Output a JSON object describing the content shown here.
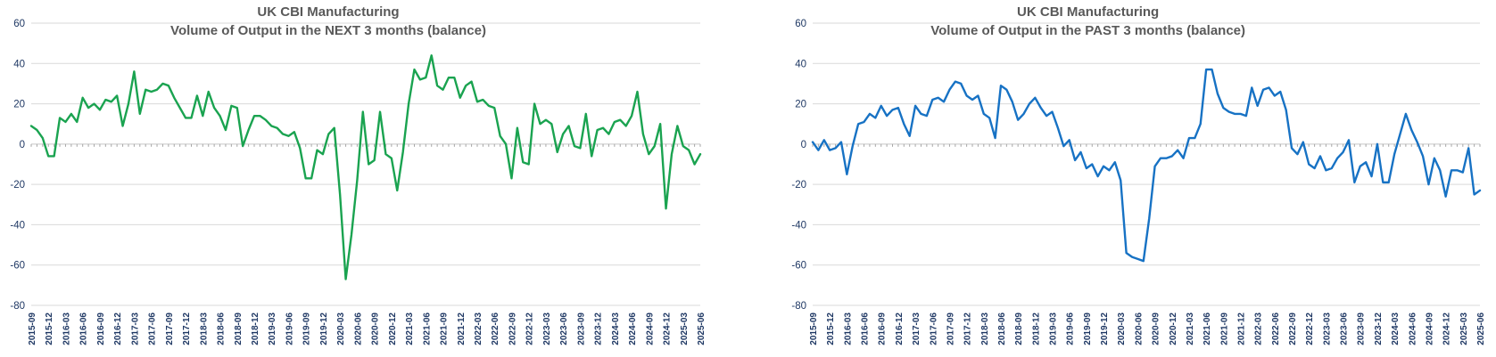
{
  "charts": [
    {
      "title_line1": "UK CBI Manufacturing",
      "title_line2": "Volume of Output in the NEXT 3 months (balance)"
    },
    {
      "title_line1": "UK CBI Manufacturing",
      "title_line2": "Volume of Output in the PAST 3 months (balance)"
    }
  ],
  "colors": {
    "next_line": "#1AA350",
    "past_line": "#1772C4",
    "title_text": "#595959",
    "axis_label_text": "#1F3864",
    "gridline": "#D9D9D9",
    "axis_line": "#C6C6C6",
    "tick_mark": "#A6A6A6",
    "background": "#FFFFFF"
  },
  "chart_data": [
    {
      "type": "line",
      "title": "UK CBI Manufacturing",
      "subtitle": "Volume of Output in the NEXT 3 months (balance)",
      "line_color": "#1AA350",
      "ylim": [
        -80,
        60
      ],
      "yticks": [
        60,
        40,
        20,
        0,
        -20,
        -40,
        -60,
        -80
      ],
      "grid": true,
      "legend": false,
      "x_tick_labels": [
        "2015-09",
        "2015-12",
        "2016-03",
        "2016-06",
        "2016-09",
        "2016-12",
        "2017-03",
        "2017-06",
        "2017-09",
        "2017-12",
        "2018-03",
        "2018-06",
        "2018-09",
        "2018-12",
        "2019-03",
        "2019-06",
        "2019-09",
        "2019-12",
        "2020-03",
        "2020-06",
        "2020-09",
        "2020-12",
        "2021-03",
        "2021-06",
        "2021-09",
        "2021-12",
        "2022-03",
        "2022-06",
        "2022-09",
        "2022-12",
        "2023-03",
        "2023-06",
        "2023-09",
        "2023-12",
        "2024-03",
        "2024-06",
        "2024-09",
        "2024-12",
        "2025-03",
        "2025-06"
      ],
      "x": [
        "2015-09",
        "2015-10",
        "2015-11",
        "2015-12",
        "2016-01",
        "2016-02",
        "2016-03",
        "2016-04",
        "2016-05",
        "2016-06",
        "2016-07",
        "2016-08",
        "2016-09",
        "2016-10",
        "2016-11",
        "2016-12",
        "2017-01",
        "2017-02",
        "2017-03",
        "2017-04",
        "2017-05",
        "2017-06",
        "2017-07",
        "2017-08",
        "2017-09",
        "2017-10",
        "2017-11",
        "2017-12",
        "2018-01",
        "2018-02",
        "2018-03",
        "2018-04",
        "2018-05",
        "2018-06",
        "2018-07",
        "2018-08",
        "2018-09",
        "2018-10",
        "2018-11",
        "2018-12",
        "2019-01",
        "2019-02",
        "2019-03",
        "2019-04",
        "2019-05",
        "2019-06",
        "2019-07",
        "2019-08",
        "2019-09",
        "2019-10",
        "2019-11",
        "2019-12",
        "2020-01",
        "2020-02",
        "2020-03",
        "2020-04",
        "2020-05",
        "2020-06",
        "2020-07",
        "2020-08",
        "2020-09",
        "2020-10",
        "2020-11",
        "2020-12",
        "2021-01",
        "2021-02",
        "2021-03",
        "2021-04",
        "2021-05",
        "2021-06",
        "2021-07",
        "2021-08",
        "2021-09",
        "2021-10",
        "2021-11",
        "2021-12",
        "2022-01",
        "2022-02",
        "2022-03",
        "2022-04",
        "2022-05",
        "2022-06",
        "2022-07",
        "2022-08",
        "2022-09",
        "2022-10",
        "2022-11",
        "2022-12",
        "2023-01",
        "2023-02",
        "2023-03",
        "2023-04",
        "2023-05",
        "2023-06",
        "2023-07",
        "2023-08",
        "2023-09",
        "2023-10",
        "2023-11",
        "2023-12",
        "2024-01",
        "2024-02",
        "2024-03",
        "2024-04",
        "2024-05",
        "2024-06",
        "2024-07",
        "2024-08",
        "2024-09",
        "2024-10",
        "2024-11",
        "2024-12",
        "2025-01",
        "2025-02",
        "2025-03",
        "2025-04",
        "2025-05",
        "2025-06"
      ],
      "values": [
        9,
        7,
        3,
        -6,
        -6,
        13,
        11,
        15,
        11,
        23,
        18,
        20,
        17,
        22,
        21,
        24,
        9,
        20,
        36,
        15,
        27,
        26,
        27,
        30,
        29,
        23,
        18,
        13,
        13,
        24,
        14,
        26,
        18,
        14,
        7,
        19,
        18,
        -1,
        7,
        14,
        14,
        12,
        9,
        8,
        5,
        4,
        6,
        -2,
        -17,
        -17,
        -3,
        -5,
        5,
        8,
        -25,
        -67,
        -45,
        -18,
        16,
        -10,
        -8,
        16,
        -5,
        -7,
        -23,
        -4,
        20,
        37,
        32,
        33,
        44,
        29,
        27,
        33,
        33,
        23,
        29,
        31,
        21,
        22,
        19,
        18,
        4,
        0,
        -17,
        8,
        -9,
        -10,
        20,
        10,
        12,
        10,
        -4,
        5,
        9,
        -1,
        -2,
        15,
        -6,
        7,
        8,
        5,
        11,
        12,
        9,
        14,
        26,
        5,
        -5,
        -1,
        10,
        -32,
        -5,
        9,
        -1,
        -3,
        -10,
        -5
      ]
    },
    {
      "type": "line",
      "title": "UK CBI Manufacturing",
      "subtitle": "Volume of Output in the PAST 3 months (balance)",
      "line_color": "#1772C4",
      "ylim": [
        -80,
        60
      ],
      "yticks": [
        60,
        40,
        20,
        0,
        -20,
        -40,
        -60,
        -80
      ],
      "grid": true,
      "legend": false,
      "x_tick_labels": [
        "2015-09",
        "2015-12",
        "2016-03",
        "2016-06",
        "2016-09",
        "2016-12",
        "2017-03",
        "2017-06",
        "2017-09",
        "2017-12",
        "2018-03",
        "2018-06",
        "2018-09",
        "2018-12",
        "2019-03",
        "2019-06",
        "2019-09",
        "2019-12",
        "2020-03",
        "2020-06",
        "2020-09",
        "2020-12",
        "2021-03",
        "2021-06",
        "2021-09",
        "2021-12",
        "2022-03",
        "2022-06",
        "2022-09",
        "2022-12",
        "2023-03",
        "2023-06",
        "2023-09",
        "2023-12",
        "2024-03",
        "2024-06",
        "2024-09",
        "2024-12",
        "2025-03",
        "2025-06"
      ],
      "x": [
        "2015-09",
        "2015-10",
        "2015-11",
        "2015-12",
        "2016-01",
        "2016-02",
        "2016-03",
        "2016-04",
        "2016-05",
        "2016-06",
        "2016-07",
        "2016-08",
        "2016-09",
        "2016-10",
        "2016-11",
        "2016-12",
        "2017-01",
        "2017-02",
        "2017-03",
        "2017-04",
        "2017-05",
        "2017-06",
        "2017-07",
        "2017-08",
        "2017-09",
        "2017-10",
        "2017-11",
        "2017-12",
        "2018-01",
        "2018-02",
        "2018-03",
        "2018-04",
        "2018-05",
        "2018-06",
        "2018-07",
        "2018-08",
        "2018-09",
        "2018-10",
        "2018-11",
        "2018-12",
        "2019-01",
        "2019-02",
        "2019-03",
        "2019-04",
        "2019-05",
        "2019-06",
        "2019-07",
        "2019-08",
        "2019-09",
        "2019-10",
        "2019-11",
        "2019-12",
        "2020-01",
        "2020-02",
        "2020-03",
        "2020-04",
        "2020-05",
        "2020-06",
        "2020-07",
        "2020-08",
        "2020-09",
        "2020-10",
        "2020-11",
        "2020-12",
        "2021-01",
        "2021-02",
        "2021-03",
        "2021-04",
        "2021-05",
        "2021-06",
        "2021-07",
        "2021-08",
        "2021-09",
        "2021-10",
        "2021-11",
        "2021-12",
        "2022-01",
        "2022-02",
        "2022-03",
        "2022-04",
        "2022-05",
        "2022-06",
        "2022-07",
        "2022-08",
        "2022-09",
        "2022-10",
        "2022-11",
        "2022-12",
        "2023-01",
        "2023-02",
        "2023-03",
        "2023-04",
        "2023-05",
        "2023-06",
        "2023-07",
        "2023-08",
        "2023-09",
        "2023-10",
        "2023-11",
        "2023-12",
        "2024-01",
        "2024-02",
        "2024-03",
        "2024-04",
        "2024-05",
        "2024-06",
        "2024-07",
        "2024-08",
        "2024-09",
        "2024-10",
        "2024-11",
        "2024-12",
        "2025-01",
        "2025-02",
        "2025-03",
        "2025-04",
        "2025-05",
        "2025-06"
      ],
      "values": [
        1,
        -3,
        2,
        -3,
        -2,
        1,
        -15,
        -1,
        10,
        11,
        15,
        13,
        19,
        14,
        17,
        18,
        10,
        4,
        19,
        15,
        14,
        22,
        23,
        21,
        27,
        31,
        30,
        24,
        22,
        24,
        15,
        13,
        3,
        29,
        27,
        21,
        12,
        15,
        20,
        23,
        18,
        14,
        16,
        8,
        -1,
        2,
        -8,
        -4,
        -12,
        -10,
        -16,
        -11,
        -13,
        -9,
        -18,
        -54,
        -56,
        -57,
        -58,
        -37,
        -11,
        -7,
        -7,
        -6,
        -3,
        -7,
        3,
        3,
        10,
        37,
        37,
        25,
        18,
        16,
        15,
        15,
        14,
        28,
        19,
        27,
        28,
        24,
        26,
        17,
        -2,
        -5,
        1,
        -10,
        -12,
        -6,
        -13,
        -12,
        -7,
        -4,
        2,
        -19,
        -11,
        -9,
        -16,
        0,
        -19,
        -19,
        -5,
        5,
        15,
        7,
        1,
        -6,
        -20,
        -7,
        -13,
        -26,
        -13,
        -13,
        -14,
        -2,
        -25,
        -23
      ]
    }
  ]
}
